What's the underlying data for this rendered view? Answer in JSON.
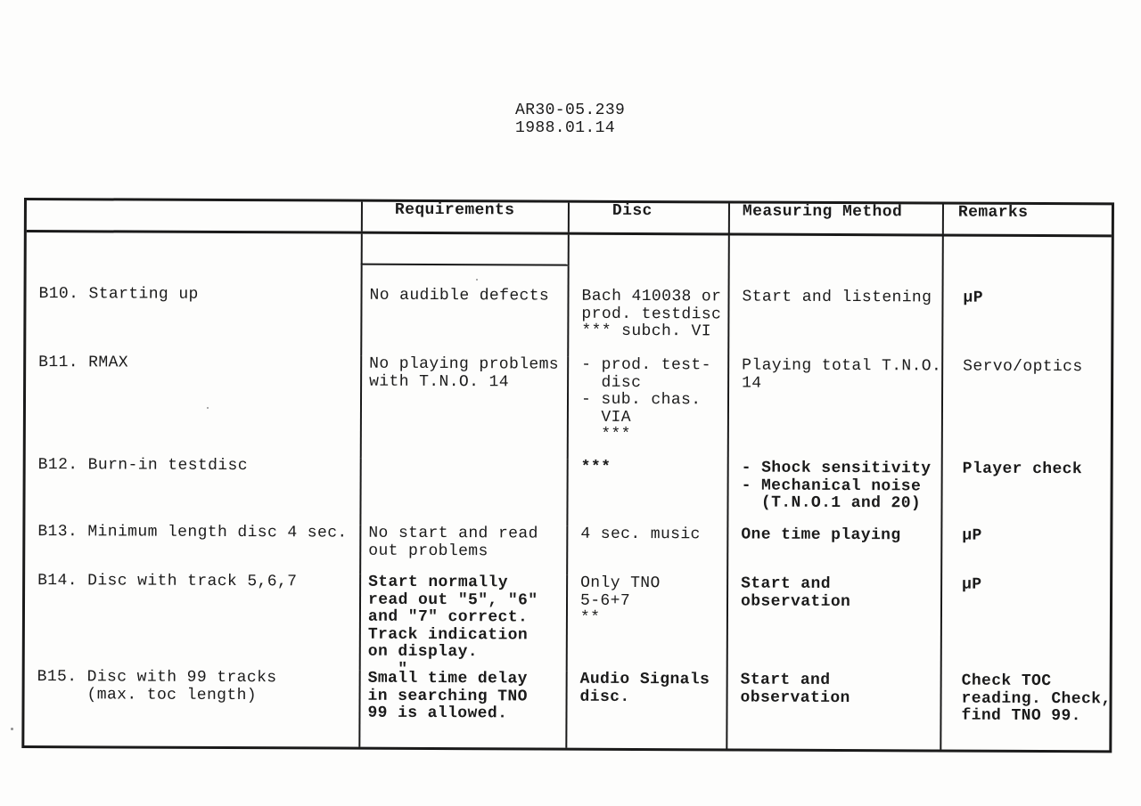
{
  "doc": {
    "ref": "AR30-05.239",
    "date": "1988.01.14"
  },
  "table": {
    "headers": [
      "",
      "Requirements",
      "Disc",
      "Measuring Method",
      "Remarks"
    ],
    "rows": [
      {
        "cells": [
          "B10. Starting up",
          "No audible defects",
          "Bach 410038 or\nprod. testdisc\n*** subch. VI",
          "Start and listening",
          "µP"
        ]
      },
      {
        "cells": [
          "B11. RMAX",
          "No playing problems\nwith T.N.O. 14",
          "- prod. test-\n  disc\n- sub. chas.\n  VIA\n  ***",
          "Playing total T.N.O.\n14",
          "Servo/optics"
        ]
      },
      {
        "cells": [
          "B12. Burn-in testdisc",
          "",
          "***",
          "- Shock sensitivity\n- Mechanical noise\n  (T.N.O.1 and 20)",
          "Player check"
        ]
      },
      {
        "cells": [
          "B13. Minimum length disc 4 sec.",
          "No start and read\nout problems",
          "4 sec. music",
          "One time playing",
          "µP"
        ]
      },
      {
        "cells": [
          "B14. Disc with track 5,6,7",
          "Start normally\nread out \"5\", \"6\"\nand \"7\" correct.\nTrack indication\non display.\n   \"",
          "Only TNO\n5-6+7\n**",
          "Start and\nobservation",
          "µP"
        ]
      },
      {
        "cells": [
          "B15. Disc with 99 tracks\n     (max. toc length)",
          "Small time delay\nin searching TNO\n99 is allowed.",
          "Audio Signals\ndisc.",
          "Start and\nobservation",
          "Check TOC\nreading. Check,\nfind TNO 99."
        ]
      }
    ]
  }
}
